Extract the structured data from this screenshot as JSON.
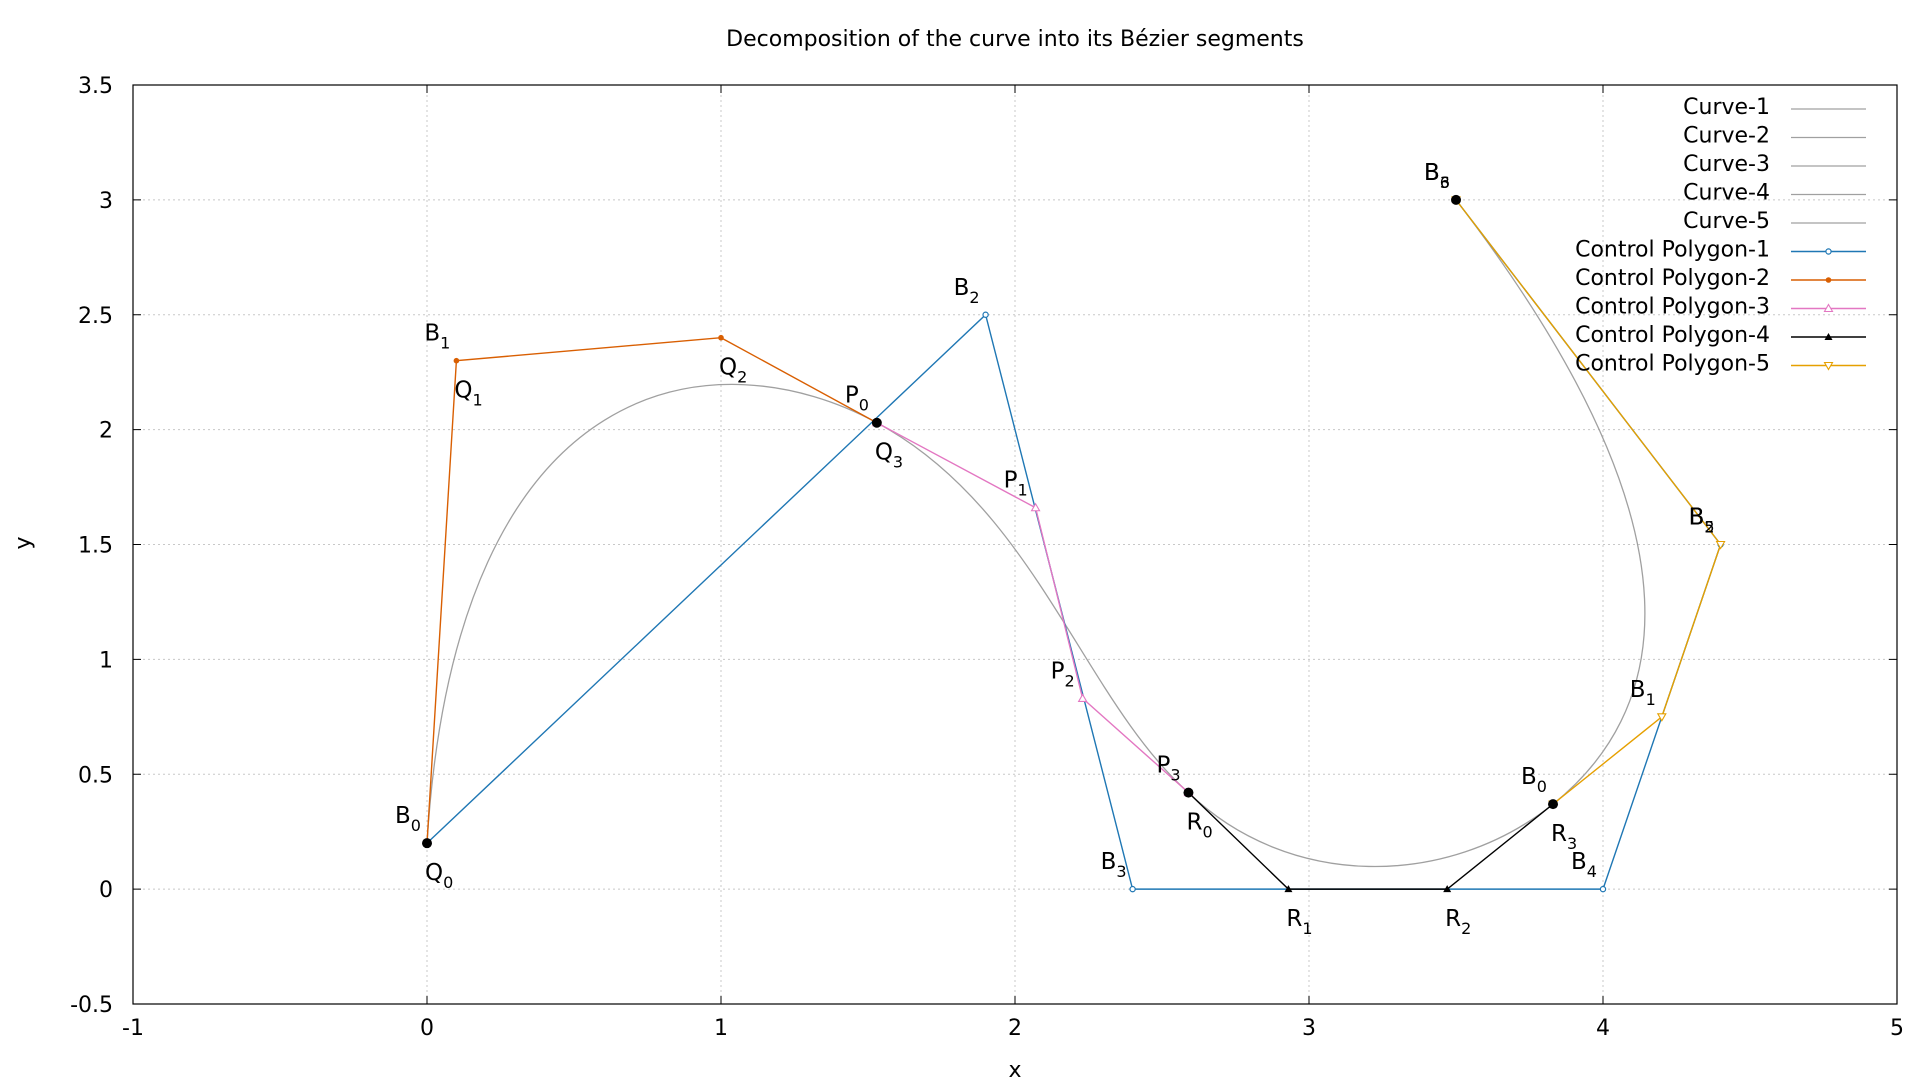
{
  "chart_data": {
    "type": "line",
    "title": "Decomposition of the curve into its Bézier segments",
    "xlabel": "x",
    "ylabel": "y",
    "xlim": [
      -1,
      5
    ],
    "ylim": [
      -0.5,
      3.5
    ],
    "grid": true,
    "legend_position": "top-right",
    "x_ticks": [
      -1,
      0,
      1,
      2,
      3,
      4,
      5
    ],
    "y_ticks": [
      -0.5,
      0,
      0.5,
      1,
      1.5,
      2,
      2.5,
      3,
      3.5
    ],
    "x_tick_labels": [
      "-1",
      "0",
      "1",
      "2",
      "3",
      "4",
      "5"
    ],
    "y_tick_labels": [
      "-0.5",
      "0",
      "0.5",
      "1",
      "1.5",
      "2",
      "2.5",
      "3",
      "3.5"
    ],
    "series": [
      {
        "name": "Curve-1",
        "kind": "curve",
        "color": "#a0a0a0",
        "control": [
          [
            0,
            0.2
          ],
          [
            0.1,
            2.3
          ],
          [
            1.0,
            2.4
          ],
          [
            1.53,
            2.03
          ]
        ]
      },
      {
        "name": "Curve-2",
        "kind": "curve",
        "color": "#a0a0a0",
        "control": [
          [
            1.53,
            2.03
          ],
          [
            2.07,
            1.66
          ],
          [
            2.23,
            0.83
          ],
          [
            2.59,
            0.42
          ]
        ]
      },
      {
        "name": "Curve-3",
        "kind": "curve",
        "color": "#a0a0a0",
        "control": [
          [
            2.59,
            0.42
          ],
          [
            2.93,
            0.0
          ],
          [
            3.47,
            0.0
          ],
          [
            3.83,
            0.37
          ]
        ]
      },
      {
        "name": "Curve-4",
        "kind": "curve",
        "color": "#a0a0a0",
        "control": [
          [
            3.83,
            0.37
          ],
          [
            4.2,
            0.75
          ],
          [
            4.4,
            1.5
          ],
          [
            3.5,
            3.0
          ]
        ]
      },
      {
        "name": "Curve-5",
        "kind": "curve",
        "color": "#a0a0a0",
        "control": []
      },
      {
        "name": "Control Polygon-1",
        "kind": "polygon",
        "marker": "circle",
        "color": "#1f77b4",
        "points": [
          [
            0,
            0.2
          ],
          [
            1.9,
            2.5
          ],
          [
            2.4,
            0.0
          ],
          [
            4.0,
            0.0
          ],
          [
            4.4,
            1.5
          ],
          [
            3.5,
            3.0
          ]
        ]
      },
      {
        "name": "Control Polygon-2",
        "kind": "polygon",
        "marker": "dot",
        "color": "#d95f02",
        "points": [
          [
            0,
            0.2
          ],
          [
            0.1,
            2.3
          ],
          [
            1.0,
            2.4
          ],
          [
            1.53,
            2.03
          ]
        ]
      },
      {
        "name": "Control Polygon-3",
        "kind": "polygon",
        "marker": "triangle-up",
        "color": "#e377c2",
        "points": [
          [
            1.53,
            2.03
          ],
          [
            2.07,
            1.66
          ],
          [
            2.23,
            0.83
          ],
          [
            2.59,
            0.42
          ]
        ]
      },
      {
        "name": "Control Polygon-4",
        "kind": "polygon",
        "marker": "triangle-up-filled",
        "color": "#000000",
        "points": [
          [
            2.59,
            0.42
          ],
          [
            2.93,
            0.0
          ],
          [
            3.47,
            0.0
          ],
          [
            3.83,
            0.37
          ]
        ]
      },
      {
        "name": "Control Polygon-5",
        "kind": "polygon",
        "marker": "triangle-down",
        "color": "#e6a000",
        "points": [
          [
            3.83,
            0.37
          ],
          [
            4.2,
            0.75
          ],
          [
            4.4,
            1.5
          ],
          [
            3.5,
            3.0
          ]
        ]
      }
    ],
    "junction_points": [
      [
        0,
        0.2
      ],
      [
        1.53,
        2.03
      ],
      [
        2.59,
        0.42
      ],
      [
        3.83,
        0.37
      ],
      [
        3.5,
        3.0
      ]
    ],
    "annotations": [
      {
        "main": "B",
        "sub": "0",
        "x": 0,
        "y": 0.2,
        "pos": "above-left"
      },
      {
        "main": "Q",
        "sub": "0",
        "x": 0,
        "y": 0.2,
        "pos": "below-right"
      },
      {
        "main": "B",
        "sub": "1",
        "x": 0.1,
        "y": 2.3,
        "pos": "above-left"
      },
      {
        "main": "Q",
        "sub": "1",
        "x": 0.1,
        "y": 2.3,
        "pos": "below-right"
      },
      {
        "main": "Q",
        "sub": "2",
        "x": 1.0,
        "y": 2.4,
        "pos": "below-right"
      },
      {
        "main": "B",
        "sub": "2",
        "x": 1.9,
        "y": 2.5,
        "pos": "above-left"
      },
      {
        "main": "P",
        "sub": "0",
        "x": 1.53,
        "y": 2.03,
        "pos": "above-left"
      },
      {
        "main": "Q",
        "sub": "3",
        "x": 1.53,
        "y": 2.03,
        "pos": "below-right"
      },
      {
        "main": "P",
        "sub": "1",
        "x": 2.07,
        "y": 1.66,
        "pos": "above-left"
      },
      {
        "main": "P",
        "sub": "2",
        "x": 2.23,
        "y": 0.83,
        "pos": "above-left"
      },
      {
        "main": "P",
        "sub": "3",
        "x": 2.59,
        "y": 0.42,
        "pos": "above-left"
      },
      {
        "main": "R",
        "sub": "0",
        "x": 2.59,
        "y": 0.42,
        "pos": "below-right"
      },
      {
        "main": "B",
        "sub": "3",
        "x": 2.4,
        "y": 0.0,
        "pos": "above-left"
      },
      {
        "main": "R",
        "sub": "1",
        "x": 2.93,
        "y": 0.0,
        "pos": "below-right"
      },
      {
        "main": "R",
        "sub": "2",
        "x": 3.47,
        "y": 0.0,
        "pos": "below-right"
      },
      {
        "main": "B",
        "sub": "0",
        "x": 3.83,
        "y": 0.37,
        "pos": "above-left"
      },
      {
        "main": "R",
        "sub": "3",
        "x": 3.83,
        "y": 0.37,
        "pos": "below-right"
      },
      {
        "main": "B",
        "sub": "4",
        "x": 4.0,
        "y": 0.0,
        "pos": "above-left"
      },
      {
        "main": "B",
        "sub": "1",
        "x": 4.2,
        "y": 0.75,
        "pos": "above-left"
      },
      {
        "main": "B",
        "sub": "5",
        "x": 4.4,
        "y": 1.5,
        "pos": "above-left"
      },
      {
        "main": "B",
        "sub": "2",
        "x": 4.4,
        "y": 1.5,
        "pos": "above-left"
      },
      {
        "main": "B",
        "sub": "6",
        "x": 3.5,
        "y": 3.0,
        "pos": "above-left"
      },
      {
        "main": "B",
        "sub": "3",
        "x": 3.5,
        "y": 3.0,
        "pos": "above-left"
      }
    ]
  }
}
